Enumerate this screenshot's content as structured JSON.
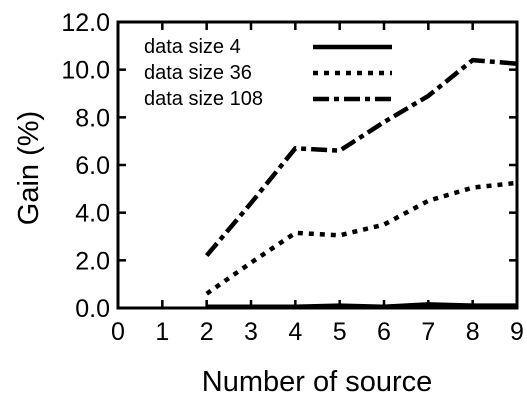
{
  "chart_data": {
    "type": "line",
    "xlabel": "Number of source",
    "ylabel": "Gain (%)",
    "xlim": [
      0,
      9
    ],
    "ylim": [
      0,
      12
    ],
    "x_ticks": [
      "0",
      "1",
      "2",
      "3",
      "4",
      "5",
      "6",
      "7",
      "8",
      "9"
    ],
    "y_ticks": [
      "0.0",
      "2.0",
      "4.0",
      "6.0",
      "8.0",
      "10.0",
      "12.0"
    ],
    "grid": false,
    "legend_position": "top-left",
    "series": [
      {
        "name": "data size 4",
        "line_style": "solid",
        "color": "#000000",
        "x": [
          2,
          3,
          4,
          5,
          6,
          7,
          8,
          9
        ],
        "y": [
          0.05,
          0.05,
          0.05,
          0.1,
          0.05,
          0.15,
          0.1,
          0.1
        ]
      },
      {
        "name": "data size 36",
        "line_style": "dotted",
        "color": "#000000",
        "x": [
          2,
          3,
          4,
          5,
          6,
          7,
          8,
          9
        ],
        "y": [
          0.6,
          1.9,
          3.15,
          3.05,
          3.5,
          4.5,
          5.05,
          5.25
        ]
      },
      {
        "name": "data size 108",
        "line_style": "dash-dot",
        "color": "#000000",
        "x": [
          2,
          3,
          4,
          5,
          6,
          7,
          8,
          9
        ],
        "y": [
          2.2,
          4.4,
          6.7,
          6.6,
          7.8,
          8.9,
          10.4,
          10.25
        ]
      }
    ]
  }
}
